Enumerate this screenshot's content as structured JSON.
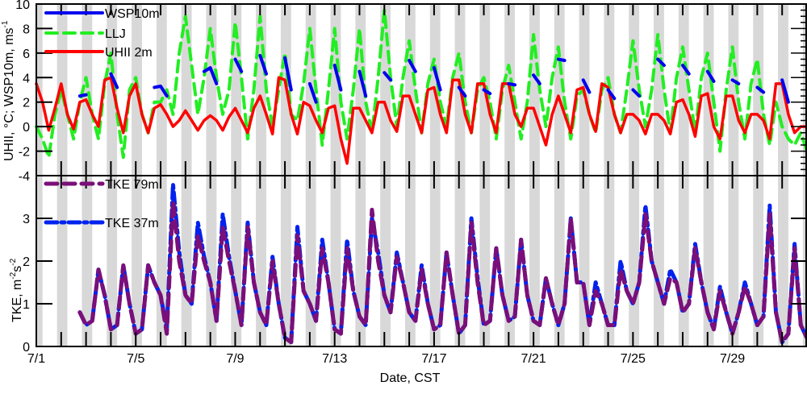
{
  "chart_data": [
    {
      "type": "line",
      "panel": "top",
      "ylabel": "UHII, °C; WSP10m, ms",
      "ylabel_sup": "-1",
      "ylim": [
        -4,
        10
      ],
      "yticks": [
        "10",
        "8",
        "6",
        "4",
        "2",
        "0",
        "-2",
        "-4"
      ],
      "ytick_values": [
        10,
        8,
        6,
        4,
        2,
        0,
        -2,
        -4
      ],
      "x_unit": "days since 7/1 00:00 CST, 6-hourly",
      "series": [
        {
          "name": "WSP10m",
          "color": "#0000ee",
          "style": "solid",
          "values": [
            1.2,
            null,
            null,
            null,
            null,
            null,
            null,
            2.5,
            2.6,
            null,
            null,
            null,
            4.3,
            3.2,
            null,
            null,
            3,
            null,
            null,
            3.2,
            3.3,
            2.5,
            null,
            null,
            null,
            null,
            null,
            4.5,
            4.8,
            3.5,
            null,
            null,
            5.5,
            4.5,
            null,
            null,
            5.8,
            4.3,
            null,
            null,
            5.6,
            3,
            null,
            null,
            3.5,
            2,
            null,
            null,
            5,
            3,
            null,
            null,
            4.5,
            2.5,
            null,
            null,
            4.4,
            3.8,
            null,
            null,
            5.4,
            4.5,
            null,
            null,
            4.8,
            3,
            null,
            null,
            3.2,
            2.5,
            null,
            null,
            3,
            2.7,
            null,
            null,
            3.5,
            3.4,
            null,
            null,
            4.2,
            3.5,
            null,
            null,
            5.5,
            5.4,
            null,
            null,
            3.8,
            2.8,
            null,
            null,
            3,
            2.3,
            null,
            null,
            3,
            2.5,
            null,
            null,
            5.5,
            5,
            null,
            null,
            5,
            4.3,
            null,
            null,
            4.5,
            3.7,
            null,
            null,
            3.8,
            3.5,
            null,
            null,
            3.2,
            2.8,
            null,
            null,
            3.8,
            2,
            null,
            null,
            2.5,
            2.2,
            null,
            null,
            null
          ]
        },
        {
          "name": "LLJ",
          "color": "#22ee22",
          "style": "dashed",
          "values": [
            0,
            -1,
            -2.5,
            1,
            3,
            1,
            -1,
            2,
            4,
            1,
            -1,
            3.5,
            6,
            1,
            -2.5,
            3,
            4,
            1,
            -0.5,
            2,
            2,
            3,
            1,
            6,
            9,
            5,
            1,
            4,
            8,
            4,
            1,
            3,
            8.5,
            4,
            -1,
            3,
            9,
            3,
            0,
            3,
            6,
            1,
            0.5,
            3.5,
            8,
            3,
            -1.5,
            3,
            8,
            2,
            -1,
            3,
            8,
            2,
            -0.5,
            4,
            9.5,
            4,
            0,
            4,
            7,
            3,
            -0.5,
            3.5,
            5.5,
            2,
            0,
            4,
            6,
            2,
            -0.5,
            3,
            4,
            2,
            -1,
            3,
            5,
            2,
            -1,
            2,
            7.5,
            3,
            0,
            4,
            6.5,
            2,
            -1,
            2.5,
            3,
            1,
            -0.5,
            3,
            4,
            1,
            -0.5,
            3,
            7,
            3,
            0,
            3,
            7.5,
            3,
            -0.5,
            4,
            6.5,
            3,
            -0.5,
            4,
            6,
            2,
            -2,
            3,
            6.5,
            2,
            -1,
            3.5,
            5.5,
            1,
            -1.5,
            2,
            0,
            -1,
            -1.5,
            -0.5,
            -2
          ]
        },
        {
          "name": "UHII 2m",
          "color": "#ff0000",
          "style": "solid",
          "values": [
            3.5,
            2,
            -0.3,
            1.5,
            3.5,
            1,
            -0.2,
            2,
            2.2,
            1,
            0,
            3.8,
            4,
            1.5,
            -0.5,
            2.5,
            3.5,
            1,
            -0.5,
            1.5,
            1.8,
            1,
            0,
            0.5,
            1.3,
            0.5,
            -0.3,
            0.5,
            0.9,
            0.5,
            -0.3,
            0.8,
            1.5,
            0.5,
            -0.5,
            1.5,
            2.5,
            1,
            -0.6,
            4,
            3.8,
            1,
            -0.6,
            2,
            1.7,
            0.5,
            -0.5,
            1.5,
            1.7,
            -1,
            -3,
            1.5,
            1.5,
            0.5,
            -0.5,
            2,
            2,
            0.5,
            -0.4,
            2.5,
            2.5,
            1,
            -0.5,
            3,
            3.2,
            1,
            -0.5,
            3.8,
            3.8,
            1,
            -0.5,
            3.5,
            3.5,
            1,
            -0.5,
            3.5,
            3.5,
            1,
            0,
            1.5,
            1.5,
            0,
            -1.5,
            1,
            2.5,
            1,
            -0.5,
            3,
            3.2,
            1,
            -0.4,
            3.5,
            3.2,
            1,
            -0.5,
            1,
            1,
            0.5,
            -0.6,
            1,
            1,
            0.5,
            -0.6,
            2,
            2.2,
            1,
            -0.8,
            2.5,
            2.7,
            0,
            -1,
            2.5,
            2.5,
            0.5,
            -0.5,
            1,
            1,
            0.5,
            -1,
            3.5,
            3.5,
            1,
            -0.5,
            0,
            0
          ]
        }
      ]
    },
    {
      "type": "line",
      "panel": "bottom",
      "ylabel": "TKE, m",
      "ylabel_sup1": "-2",
      "ylabel_mid": "s",
      "ylabel_sup2": "-2",
      "ylim": [
        0,
        4
      ],
      "yticks": [
        "3",
        "2",
        "1",
        "0"
      ],
      "ytick_values": [
        3,
        2,
        1,
        0
      ],
      "x_unit": "days since 7/1 00:00 CST, 6-hourly",
      "series": [
        {
          "name": "TKE 79m",
          "color": "#7a0f7a",
          "style": "dashed",
          "values": [
            null,
            null,
            null,
            null,
            null,
            null,
            null,
            0.8,
            0.5,
            0.6,
            1.8,
            1.2,
            0.4,
            0.5,
            1.9,
            1.0,
            0.3,
            0.4,
            1.9,
            1.5,
            1.2,
            0.3,
            3.4,
            2.0,
            1.2,
            1.0,
            2.6,
            2.0,
            1.5,
            0.6,
            2.8,
            2.0,
            1.3,
            0.5,
            2.8,
            1.5,
            0.8,
            0.5,
            2.0,
            1.0,
            0.2,
            0.1,
            2.6,
            1.3,
            1.0,
            0.6,
            2.3,
            1.5,
            0.4,
            0.3,
            2.3,
            1.3,
            0.7,
            0.5,
            3.2,
            2.0,
            1.2,
            0.8,
            2.1,
            1.5,
            0.8,
            0.6,
            1.8,
            1.0,
            0.4,
            0.5,
            2.2,
            1.2,
            0.3,
            0.5,
            2.9,
            1.5,
            0.5,
            0.6,
            2.3,
            1.2,
            0.6,
            0.7,
            2.5,
            1.2,
            0.6,
            0.5,
            1.6,
            1.0,
            0.5,
            1.0,
            3.0,
            1.5,
            1.5,
            0.5,
            1.3,
            1.0,
            0.5,
            0.5,
            1.8,
            1.3,
            1.0,
            1.5,
            3.1,
            2.0,
            1.5,
            1.0,
            1.6,
            1.5,
            0.8,
            1.0,
            2.3,
            1.5,
            0.8,
            0.4,
            1.3,
            0.8,
            0.3,
            0.8,
            1.4,
            1.0,
            0.5,
            0.7,
            3.1,
            0.8,
            0.1,
            0.3,
            2.3,
            0.5,
            0.2
          ]
        },
        {
          "name": "TKE 37m",
          "color": "#0022ee",
          "style": "dashdot",
          "values": [
            null,
            null,
            null,
            null,
            null,
            null,
            null,
            0.8,
            0.5,
            0.6,
            1.8,
            1.2,
            0.4,
            0.5,
            1.9,
            1.0,
            0.3,
            0.4,
            1.9,
            1.5,
            1.2,
            0.4,
            3.8,
            2.2,
            1.2,
            1.0,
            2.9,
            2.1,
            1.5,
            0.6,
            3.1,
            2.1,
            1.3,
            0.5,
            2.9,
            1.5,
            0.8,
            0.5,
            2.1,
            1.0,
            0.2,
            0.1,
            2.8,
            1.3,
            1.0,
            0.6,
            2.5,
            1.5,
            0.4,
            0.3,
            2.5,
            1.3,
            0.7,
            0.5,
            3.0,
            2.2,
            1.2,
            0.8,
            2.2,
            1.5,
            0.8,
            0.6,
            1.9,
            1.0,
            0.4,
            0.5,
            2.2,
            1.2,
            0.3,
            0.5,
            3.0,
            1.6,
            0.5,
            0.6,
            2.3,
            1.2,
            0.6,
            0.7,
            2.5,
            1.2,
            0.6,
            0.5,
            1.6,
            1.0,
            0.5,
            1.0,
            3.0,
            1.5,
            1.5,
            0.5,
            1.5,
            1.0,
            0.5,
            0.5,
            2.0,
            1.3,
            1.0,
            1.5,
            3.3,
            2.0,
            1.5,
            1.0,
            1.8,
            1.5,
            0.8,
            1.0,
            2.4,
            1.5,
            0.8,
            0.4,
            1.4,
            0.8,
            0.3,
            0.8,
            1.5,
            1.0,
            0.5,
            0.7,
            3.3,
            0.8,
            0.1,
            0.3,
            2.4,
            0.5,
            0.2
          ]
        }
      ]
    }
  ],
  "xaxis": {
    "label": "Date, CST",
    "xlim_days": [
      0,
      31
    ],
    "ticks": [
      {
        "label": "7/1",
        "day": 0
      },
      {
        "label": "7/5",
        "day": 4
      },
      {
        "label": "7/9",
        "day": 8
      },
      {
        "label": "7/13",
        "day": 12
      },
      {
        "label": "7/17",
        "day": 16
      },
      {
        "label": "7/21",
        "day": 20
      },
      {
        "label": "7/25",
        "day": 24
      },
      {
        "label": "7/29",
        "day": 28
      }
    ],
    "night_shading_hours": [
      -4,
      6
    ],
    "shading_color": "#d8d8d8"
  }
}
